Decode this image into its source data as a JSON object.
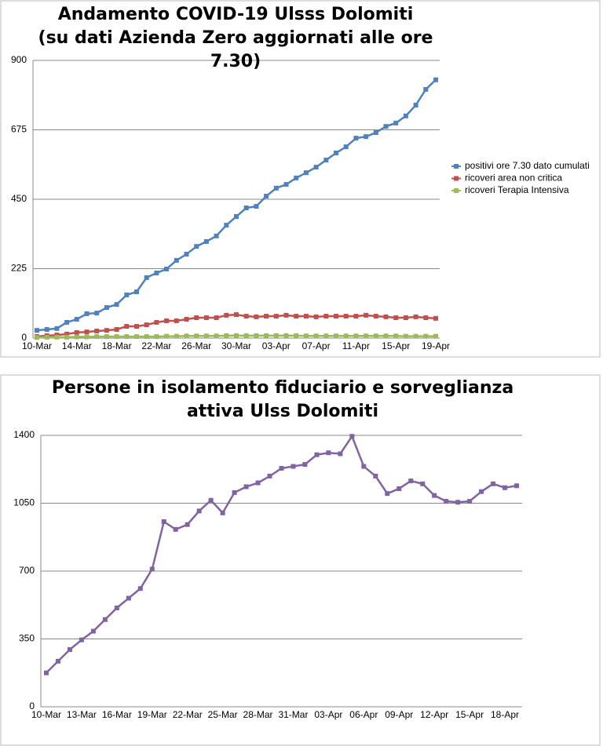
{
  "chart_data": [
    {
      "type": "line",
      "title": "Andamento COVID-19 Ulsss Dolomiti",
      "subtitle": "(su dati Azienda Zero aggiornati alle ore 7.30)",
      "categories": [
        "10-Mar",
        null,
        null,
        null,
        "14-Mar",
        null,
        null,
        null,
        "18-Mar",
        null,
        null,
        null,
        "22-Mar",
        null,
        null,
        null,
        "26-Mar",
        null,
        null,
        null,
        "30-Mar",
        null,
        null,
        null,
        "03-Apr",
        null,
        null,
        null,
        "07-Apr",
        null,
        null,
        null,
        "11-Apr",
        null,
        null,
        null,
        "15-Apr",
        null,
        null,
        null,
        "19-Apr"
      ],
      "series": [
        {
          "name": "positivi ore 7.30 dato cumulati",
          "color": "#4f81bd",
          "values": [
            25,
            28,
            31,
            51,
            61,
            79,
            81,
            99,
            109,
            140,
            150,
            196,
            211,
            224,
            252,
            272,
            297,
            313,
            331,
            366,
            394,
            422,
            427,
            460,
            486,
            498,
            519,
            536,
            554,
            577,
            600,
            620,
            648,
            653,
            666,
            686,
            697,
            720,
            755,
            806,
            837
          ]
        },
        {
          "name": "ricoveri area non critica",
          "color": "#c0504d",
          "values": [
            5,
            8,
            10,
            13,
            18,
            20,
            23,
            25,
            28,
            38,
            38,
            43,
            51,
            56,
            56,
            61,
            66,
            66,
            66,
            74,
            76,
            71,
            69,
            71,
            71,
            74,
            71,
            71,
            69,
            71,
            71,
            71,
            71,
            74,
            71,
            69,
            66,
            66,
            69,
            66,
            64
          ]
        },
        {
          "name": "ricoveri Terapia Intensiva",
          "color": "#9bbb59",
          "values": [
            2,
            3,
            3,
            3,
            4,
            4,
            5,
            5,
            5,
            5,
            5,
            5,
            5,
            6,
            6,
            7,
            7,
            7,
            7,
            8,
            8,
            8,
            8,
            8,
            8,
            8,
            8,
            7,
            7,
            7,
            7,
            7,
            7,
            7,
            7,
            7,
            7,
            6,
            6,
            6,
            6
          ]
        }
      ],
      "ylim": [
        0,
        900
      ],
      "yticks": [
        0,
        225,
        450,
        675,
        900
      ],
      "grid": true,
      "legend": "right"
    },
    {
      "type": "line",
      "title": "Persone in isolamento fiduciario e sorveglianza attiva Ulss Dolomiti",
      "categories": [
        "10-Mar",
        null,
        null,
        "13-Mar",
        null,
        null,
        "16-Mar",
        null,
        null,
        "19-Mar",
        null,
        null,
        "22-Mar",
        null,
        null,
        "25-Mar",
        null,
        null,
        "28-Mar",
        null,
        null,
        "31-Mar",
        null,
        null,
        "03-Apr",
        null,
        null,
        "06-Apr",
        null,
        null,
        "09-Apr",
        null,
        null,
        "12-Apr",
        null,
        null,
        "15-Apr",
        null,
        null,
        "18-Apr",
        null
      ],
      "series": [
        {
          "color": "#8064a2",
          "values": [
            175,
            235,
            295,
            345,
            390,
            450,
            510,
            560,
            610,
            710,
            955,
            915,
            940,
            1010,
            1065,
            1000,
            1105,
            1135,
            1155,
            1190,
            1230,
            1240,
            1250,
            1300,
            1310,
            1305,
            1395,
            1240,
            1190,
            1100,
            1125,
            1165,
            1150,
            1090,
            1060,
            1055,
            1060,
            1110,
            1150,
            1130,
            1140
          ]
        }
      ],
      "ylim": [
        0,
        1400
      ],
      "yticks": [
        0,
        350,
        700,
        1050,
        1400
      ],
      "grid": true
    }
  ]
}
